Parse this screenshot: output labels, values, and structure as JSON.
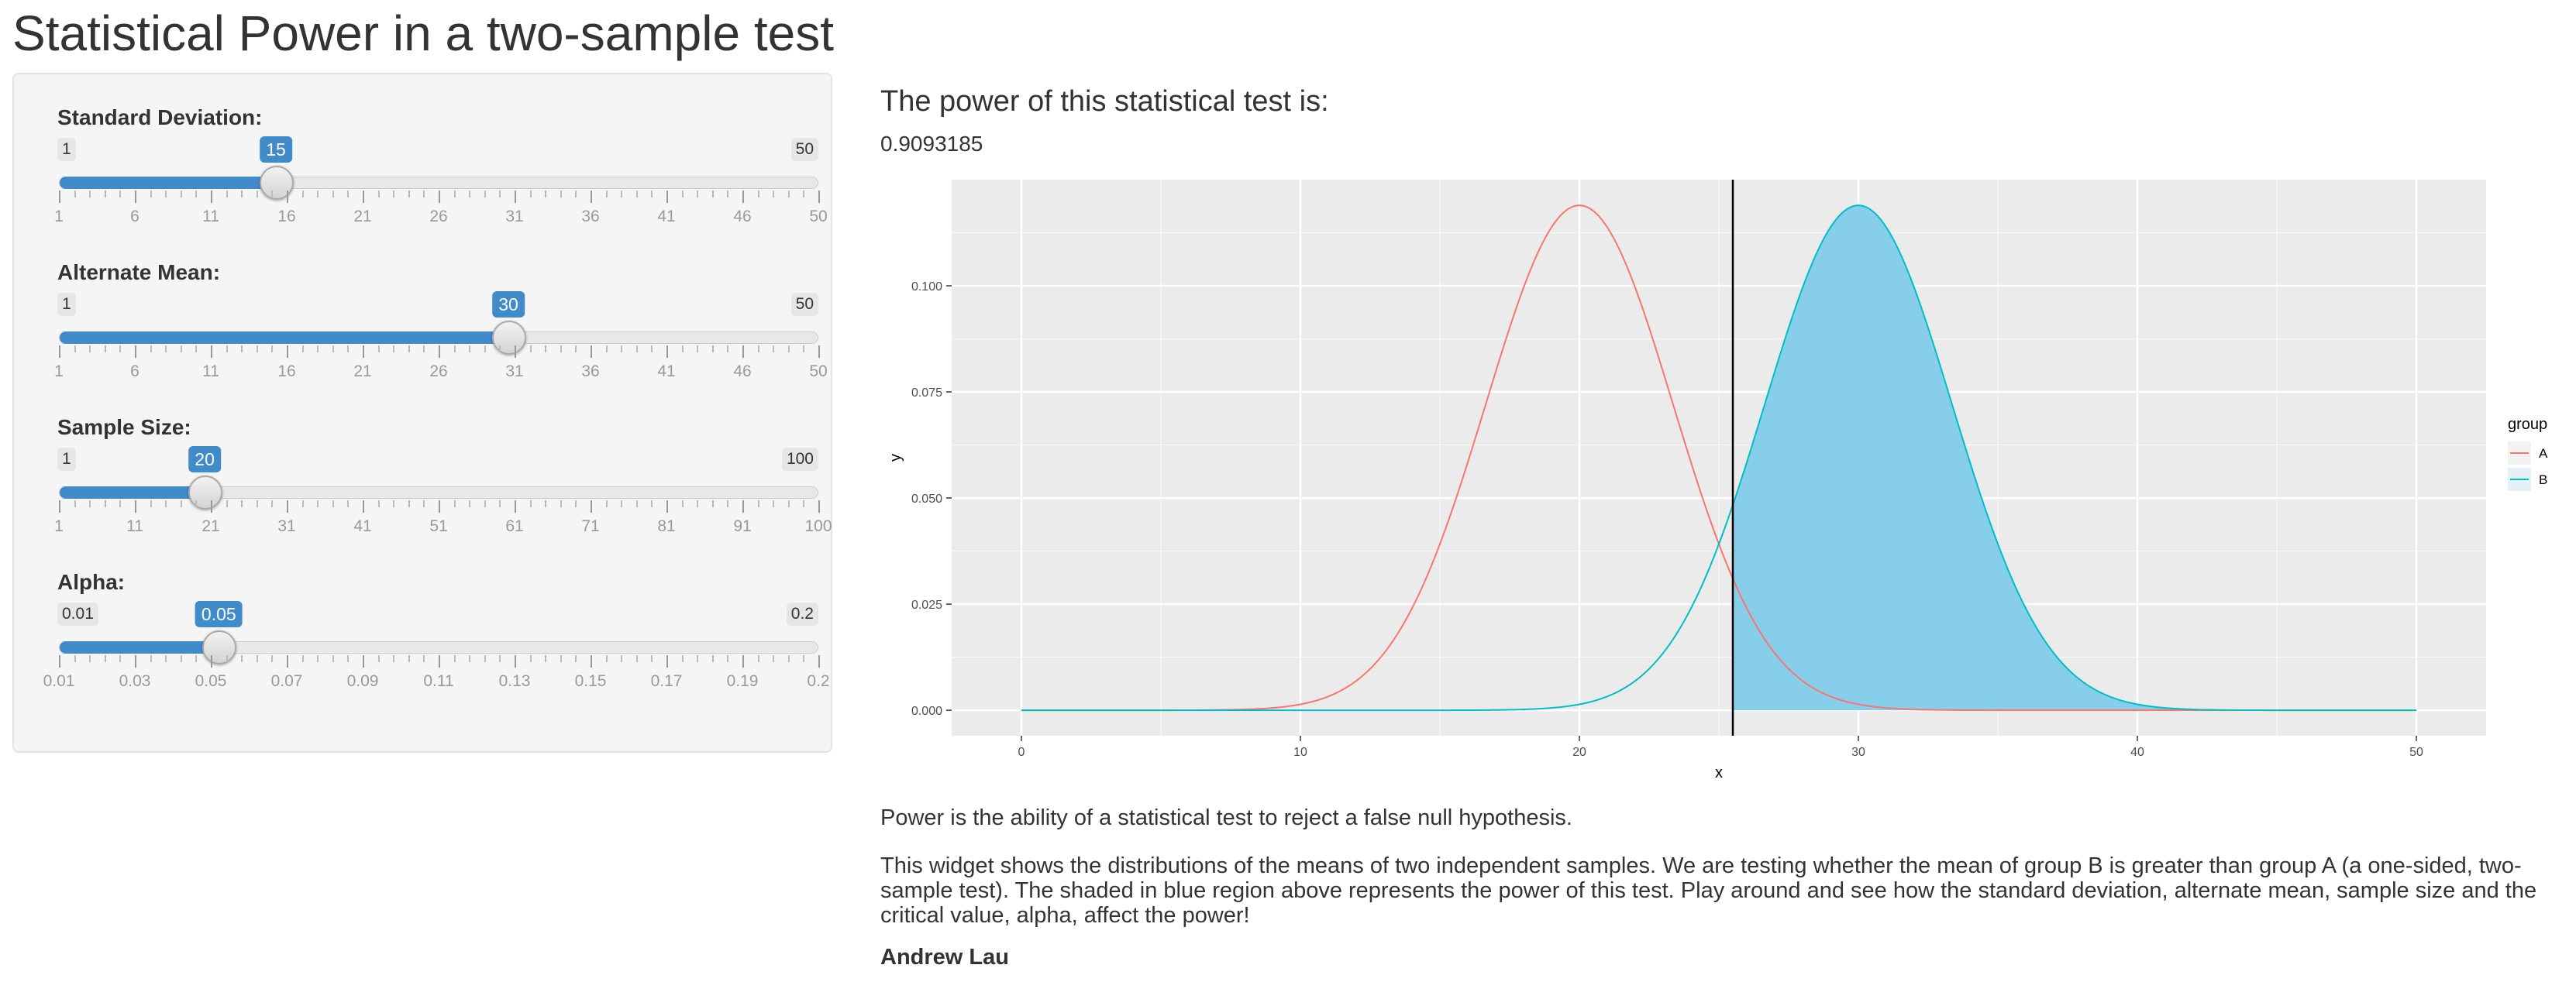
{
  "page": {
    "title": "Statistical Power in a two-sample test"
  },
  "sliders": [
    {
      "id": "sd",
      "label": "Standard Deviation:",
      "min": 1,
      "max": 50,
      "value": 15,
      "min_label": "1",
      "max_label": "50",
      "value_label": "15",
      "ticks": [
        "1",
        "6",
        "11",
        "16",
        "21",
        "26",
        "31",
        "36",
        "41",
        "46",
        "50"
      ]
    },
    {
      "id": "mean",
      "label": "Alternate Mean:",
      "min": 1,
      "max": 50,
      "value": 30,
      "min_label": "1",
      "max_label": "50",
      "value_label": "30",
      "ticks": [
        "1",
        "6",
        "11",
        "16",
        "21",
        "26",
        "31",
        "36",
        "41",
        "46",
        "50"
      ]
    },
    {
      "id": "n",
      "label": "Sample Size:",
      "min": 1,
      "max": 100,
      "value": 20,
      "min_label": "1",
      "max_label": "100",
      "value_label": "20",
      "ticks": [
        "1",
        "11",
        "21",
        "31",
        "41",
        "51",
        "61",
        "71",
        "81",
        "91",
        "100"
      ]
    },
    {
      "id": "alpha",
      "label": "Alpha:",
      "min": 0.01,
      "max": 0.2,
      "value": 0.05,
      "min_label": "0.01",
      "max_label": "0.2",
      "value_label": "0.05",
      "ticks": [
        "0.01",
        "0.03",
        "0.05",
        "0.07",
        "0.09",
        "0.11",
        "0.13",
        "0.15",
        "0.17",
        "0.19",
        "0.2"
      ]
    }
  ],
  "result": {
    "heading": "The power of this statistical test is:",
    "value": "0.9093185"
  },
  "chart_data": {
    "type": "area",
    "title": "",
    "xlabel": "x",
    "ylabel": "y",
    "xlim": [
      -2.5,
      52.5
    ],
    "ylim": [
      -0.006,
      0.125
    ],
    "x_ticks": [
      0,
      10,
      20,
      30,
      40,
      50
    ],
    "y_ticks": [
      0.0,
      0.025,
      0.05,
      0.075,
      0.1
    ],
    "y_tick_labels": [
      "0.000",
      "0.025",
      "0.050",
      "0.075",
      "0.100"
    ],
    "critical_value": 25.5,
    "legend": {
      "title": "group",
      "position": "right"
    },
    "series": [
      {
        "name": "A",
        "distribution": "normal",
        "mean": 20,
        "sd": 3.354,
        "color": "#F8766D"
      },
      {
        "name": "B",
        "distribution": "normal",
        "mean": 30,
        "sd": 3.354,
        "color": "#00BFC4",
        "shaded_from": 25.5,
        "shade_color": "#87CEEB"
      }
    ],
    "grid": true,
    "panel_background": "#EBEBEB"
  },
  "description": {
    "line1": "Power is the ability of a statistical test to reject a false null hypothesis.",
    "line2": "This widget shows the distributions of the means of two independent samples. We are testing whether the mean of group B is greater than group A (a one-sided, two-sample test). The shaded in blue region above represents the power of this test. Play around and see how the standard deviation, alternate mean, sample size and the critical value, alpha, affect the power!",
    "author": "Andrew Lau"
  },
  "colors": {
    "slider_accent": "#428bca",
    "group_a": "#F8766D",
    "group_b": "#00BFC4",
    "shade": "#87CEEB"
  }
}
